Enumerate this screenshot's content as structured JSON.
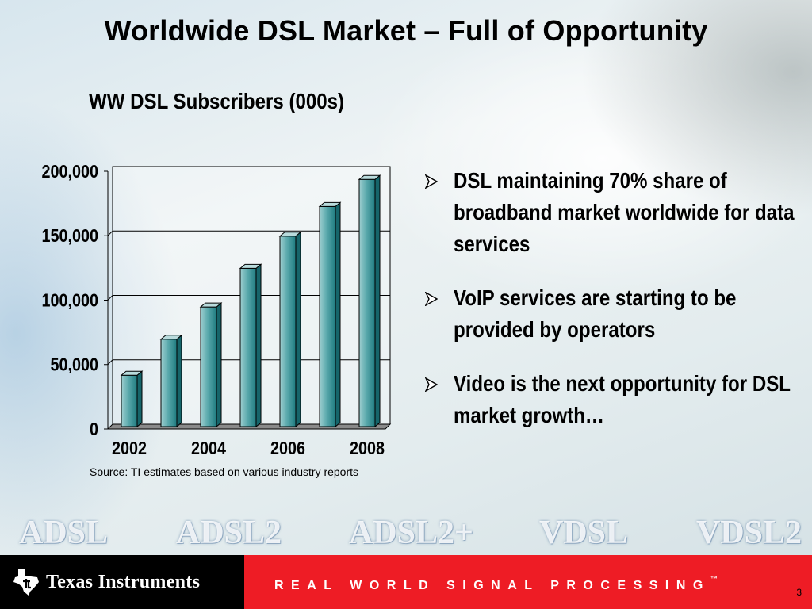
{
  "slide": {
    "title": "Worldwide DSL Market – Full of Opportunity",
    "source_note": "Source: TI estimates based on various industry reports",
    "page_number": "3"
  },
  "chart_data": {
    "type": "bar",
    "title": "WW DSL Subscribers (000s)",
    "xlabel": "",
    "ylabel": "",
    "categories": [
      "2002",
      "2003",
      "2004",
      "2005",
      "2006",
      "2007",
      "2008"
    ],
    "x_tick_labels": [
      "2002",
      "2004",
      "2006",
      "2008"
    ],
    "values": [
      38000,
      66000,
      91000,
      121000,
      146000,
      169000,
      190000
    ],
    "y_tick_labels": [
      "200,000",
      "150,000",
      "100,000",
      "50,000",
      "0"
    ],
    "ylim": [
      0,
      200000
    ],
    "grid": true,
    "bar_style": "3d",
    "colors": {
      "bar": "#2f8f93",
      "bar_light": "#b9dbdc"
    }
  },
  "bullets": [
    "DSL maintaining 70% share of broadband market worldwide for data services",
    "VoIP services are starting to be provided by operators",
    "Video is the next opportunity for DSL market growth…"
  ],
  "bullet_icon": "arrowhead-bullet-icon",
  "standards": [
    "ADSL",
    "ADSL2",
    "ADSL2+",
    "VDSL",
    "VDSL2"
  ],
  "footer": {
    "company": "Texas Instruments",
    "tagline": "REAL WORLD SIGNAL PROCESSING",
    "tagline_mark": "™",
    "logo_icon": "texas-state-logo-icon",
    "colors": {
      "black": "#000000",
      "red": "#ee1c25"
    }
  }
}
